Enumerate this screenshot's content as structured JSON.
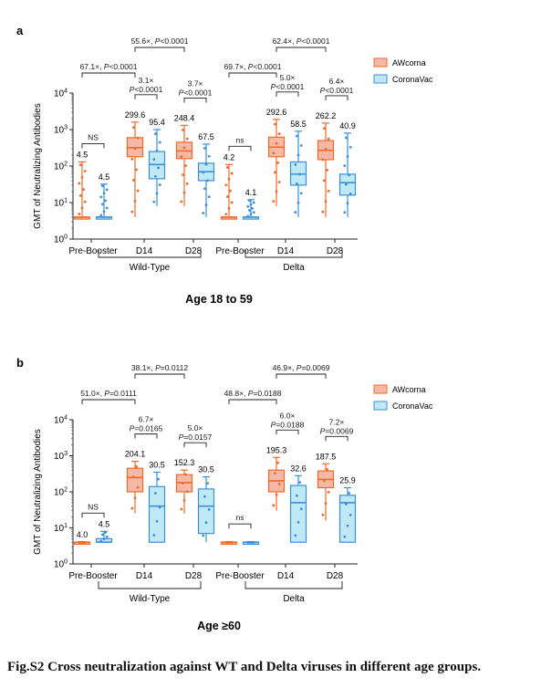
{
  "caption": "Fig.S2 Cross neutralization against WT and Delta viruses in different age groups.",
  "colors": {
    "awcorna": "#ef6a2a",
    "awcorna_fill": "#f6b8a6",
    "coronavac": "#3d8fd9",
    "coronavac_fill": "#bfe9f5"
  },
  "chart_data": [
    {
      "panel": "a",
      "type": "box",
      "title": "Age 18 to 59",
      "ylabel": "GMT of Neutralizing Antibodies",
      "yscale": "log",
      "ylim": [
        1,
        10000
      ],
      "yticks": [
        "10⁰",
        "10¹",
        "10²",
        "10³",
        "10⁴"
      ],
      "legend": [
        "AWcorna",
        "CoronaVac"
      ],
      "legend_position": "top-right",
      "categories": [
        "Pre-Booster",
        "D14",
        "D28",
        "Pre-Booster",
        "D14",
        "D28"
      ],
      "groups": [
        "Wild-Type",
        "Delta"
      ],
      "boxes": [
        {
          "series": "AWcorna",
          "category": "Pre-Booster",
          "group": "Wild-Type",
          "gmt": 4.5,
          "label": "4.5",
          "min": 4,
          "q1": 4,
          "median": 4,
          "q3": 4,
          "max": 130
        },
        {
          "series": "CoronaVac",
          "category": "Pre-Booster",
          "group": "Wild-Type",
          "gmt": 4.5,
          "label": "4.5",
          "min": 4,
          "q1": 4,
          "median": 4,
          "q3": 4,
          "max": 32
        },
        {
          "series": "AWcorna",
          "category": "D14",
          "group": "Wild-Type",
          "gmt": 299.6,
          "label": "299.6",
          "min": 4,
          "q1": 180,
          "median": 320,
          "q3": 600,
          "max": 1600
        },
        {
          "series": "CoronaVac",
          "category": "D14",
          "group": "Wild-Type",
          "gmt": 95.4,
          "label": "95.4",
          "min": 8,
          "q1": 45,
          "median": 110,
          "q3": 250,
          "max": 1000
        },
        {
          "series": "AWcorna",
          "category": "D28",
          "group": "Wild-Type",
          "gmt": 248.4,
          "label": "248.4",
          "min": 8,
          "q1": 160,
          "median": 260,
          "q3": 450,
          "max": 1300
        },
        {
          "series": "CoronaVac",
          "category": "D28",
          "group": "Wild-Type",
          "gmt": 67.5,
          "label": "67.5",
          "min": 4,
          "q1": 40,
          "median": 70,
          "q3": 120,
          "max": 400
        },
        {
          "series": "AWcorna",
          "category": "Pre-Booster",
          "group": "Delta",
          "gmt": 4.2,
          "label": "4.2",
          "min": 4,
          "q1": 4,
          "median": 4,
          "q3": 4,
          "max": 110
        },
        {
          "series": "CoronaVac",
          "category": "Pre-Booster",
          "group": "Delta",
          "gmt": 4.1,
          "label": "4.1",
          "min": 4,
          "q1": 4,
          "median": 4,
          "q3": 4,
          "max": 12
        },
        {
          "series": "AWcorna",
          "category": "D14",
          "group": "Delta",
          "gmt": 292.6,
          "label": "292.6",
          "min": 8,
          "q1": 180,
          "median": 330,
          "q3": 620,
          "max": 1900
        },
        {
          "series": "CoronaVac",
          "category": "D14",
          "group": "Delta",
          "gmt": 58.5,
          "label": "58.5",
          "min": 4,
          "q1": 30,
          "median": 60,
          "q3": 130,
          "max": 900
        },
        {
          "series": "AWcorna",
          "category": "D28",
          "group": "Delta",
          "gmt": 262.2,
          "label": "262.2",
          "min": 4,
          "q1": 150,
          "median": 270,
          "q3": 500,
          "max": 1500
        },
        {
          "series": "CoronaVac",
          "category": "D28",
          "group": "Delta",
          "gmt": 40.9,
          "label": "40.9",
          "min": 4,
          "q1": 16,
          "median": 35,
          "q3": 60,
          "max": 800
        }
      ],
      "comparisons": [
        {
          "from": "AWcorna-D14-Wild-Type",
          "to": "AWcorna-D28-Wild-Type",
          "text": "55.6×, P<0.0001"
        },
        {
          "from": "AWcorna-Pre-Booster-Wild-Type",
          "to": "AWcorna-D14-Wild-Type",
          "text": "67.1×, P<0.0001"
        },
        {
          "from": "AWcorna-Pre-Booster-Wild-Type",
          "to": "CoronaVac-Pre-Booster-Wild-Type",
          "text": "NS"
        },
        {
          "from": "AWcorna-D14-Wild-Type",
          "to": "CoronaVac-D14-Wild-Type",
          "text": "3.1× P<0.0001"
        },
        {
          "from": "AWcorna-D28-Wild-Type",
          "to": "CoronaVac-D28-Wild-Type",
          "text": "3.7× P<0.0001"
        },
        {
          "from": "AWcorna-D14-Delta",
          "to": "AWcorna-D28-Delta",
          "text": "62.4×, P<0.0001"
        },
        {
          "from": "AWcorna-Pre-Booster-Delta",
          "to": "AWcorna-D14-Delta",
          "text": "69.7×, P<0.0001"
        },
        {
          "from": "AWcorna-Pre-Booster-Delta",
          "to": "CoronaVac-Pre-Booster-Delta",
          "text": "ns"
        },
        {
          "from": "AWcorna-D14-Delta",
          "to": "CoronaVac-D14-Delta",
          "text": "5.0× P<0.0001"
        },
        {
          "from": "AWcorna-D28-Delta",
          "to": "CoronaVac-D28-Delta",
          "text": "6.4× P<0.0001"
        }
      ]
    },
    {
      "panel": "b",
      "type": "box",
      "title": "Age ≥60",
      "ylabel": "GMT of Neutralizing Antibodies",
      "yscale": "log",
      "ylim": [
        1,
        10000
      ],
      "yticks": [
        "10⁰",
        "10¹",
        "10²",
        "10³",
        "10⁴"
      ],
      "legend": [
        "AWcorna",
        "CoronaVac"
      ],
      "legend_position": "top-right",
      "categories": [
        "Pre-Booster",
        "D14",
        "D28",
        "Pre-Booster",
        "D14",
        "D28"
      ],
      "groups": [
        "Wild-Type",
        "Delta"
      ],
      "boxes": [
        {
          "series": "AWcorna",
          "category": "Pre-Booster",
          "group": "Wild-Type",
          "gmt": 4.0,
          "label": "4.0",
          "min": 4,
          "q1": 4,
          "median": 4,
          "q3": 4,
          "max": 4
        },
        {
          "series": "CoronaVac",
          "category": "Pre-Booster",
          "group": "Wild-Type",
          "gmt": 4.5,
          "label": "4.5",
          "min": 4,
          "q1": 4,
          "median": 4,
          "q3": 5,
          "max": 8
        },
        {
          "series": "AWcorna",
          "category": "D14",
          "group": "Wild-Type",
          "gmt": 204.1,
          "label": "204.1",
          "min": 25,
          "q1": 100,
          "median": 250,
          "q3": 450,
          "max": 700
        },
        {
          "series": "CoronaVac",
          "category": "D14",
          "group": "Wild-Type",
          "gmt": 30.5,
          "label": "30.5",
          "min": 4,
          "q1": 4,
          "median": 40,
          "q3": 140,
          "max": 350
        },
        {
          "series": "AWcorna",
          "category": "D28",
          "group": "Wild-Type",
          "gmt": 152.3,
          "label": "152.3",
          "min": 25,
          "q1": 100,
          "median": 180,
          "q3": 300,
          "max": 400
        },
        {
          "series": "CoronaVac",
          "category": "D28",
          "group": "Wild-Type",
          "gmt": 30.5,
          "label": "30.5",
          "min": 4,
          "q1": 7,
          "median": 40,
          "q3": 120,
          "max": 260
        },
        {
          "series": "AWcorna",
          "category": "Pre-Booster",
          "group": "Delta",
          "gmt": 4.0,
          "label": "",
          "min": 4,
          "q1": 4,
          "median": 4,
          "q3": 4,
          "max": 4
        },
        {
          "series": "CoronaVac",
          "category": "Pre-Booster",
          "group": "Delta",
          "gmt": 4.0,
          "label": "",
          "min": 4,
          "q1": 4,
          "median": 4,
          "q3": 4,
          "max": 4
        },
        {
          "series": "AWcorna",
          "category": "D14",
          "group": "Delta",
          "gmt": 195.3,
          "label": "195.3",
          "min": 30,
          "q1": 100,
          "median": 200,
          "q3": 400,
          "max": 900
        },
        {
          "series": "CoronaVac",
          "category": "D14",
          "group": "Delta",
          "gmt": 32.6,
          "label": "32.6",
          "min": 4,
          "q1": 4,
          "median": 50,
          "q3": 150,
          "max": 280
        },
        {
          "series": "AWcorna",
          "category": "D28",
          "group": "Delta",
          "gmt": 187.5,
          "label": "187.5",
          "min": 16,
          "q1": 130,
          "median": 220,
          "q3": 380,
          "max": 600
        },
        {
          "series": "CoronaVac",
          "category": "D28",
          "group": "Delta",
          "gmt": 25.9,
          "label": "25.9",
          "min": 4,
          "q1": 4,
          "median": 50,
          "q3": 80,
          "max": 130
        }
      ],
      "comparisons": [
        {
          "from": "AWcorna-D14-Wild-Type",
          "to": "AWcorna-D28-Wild-Type",
          "text": "38.1×, P=0.0112"
        },
        {
          "from": "AWcorna-Pre-Booster-Wild-Type",
          "to": "AWcorna-D14-Wild-Type",
          "text": "51.0×, P=0.0111"
        },
        {
          "from": "AWcorna-Pre-Booster-Wild-Type",
          "to": "CoronaVac-Pre-Booster-Wild-Type",
          "text": "NS"
        },
        {
          "from": "AWcorna-D14-Wild-Type",
          "to": "CoronaVac-D14-Wild-Type",
          "text": "6.7× P=0.0165"
        },
        {
          "from": "AWcorna-D28-Wild-Type",
          "to": "CoronaVac-D28-Wild-Type",
          "text": "5.0× P=0.0157"
        },
        {
          "from": "AWcorna-D14-Delta",
          "to": "AWcorna-D28-Delta",
          "text": "46.9×, P=0.0069"
        },
        {
          "from": "AWcorna-Pre-Booster-Delta",
          "to": "AWcorna-D14-Delta",
          "text": "48.8×, P=0.0188"
        },
        {
          "from": "AWcorna-Pre-Booster-Delta",
          "to": "CoronaVac-Pre-Booster-Delta",
          "text": "ns"
        },
        {
          "from": "AWcorna-D14-Delta",
          "to": "CoronaVac-D14-Delta",
          "text": "6.0× P=0.0188"
        },
        {
          "from": "AWcorna-D28-Delta",
          "to": "CoronaVac-D28-Delta",
          "text": "7.2× P=0.0069"
        }
      ]
    }
  ]
}
